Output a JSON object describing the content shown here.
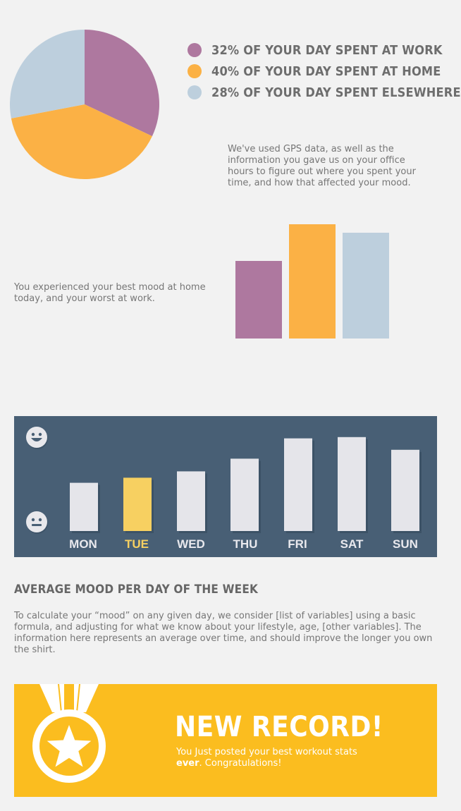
{
  "legend": [
    {
      "text": "32% of your day spent at work",
      "color": "#ae789f"
    },
    {
      "text": "40% of your day spent at home",
      "color": "#fbb145"
    },
    {
      "text": "28% of your day spent elsewhere",
      "color": "#bdcfdd"
    }
  ],
  "gps_text": "We've used GPS data, as well as the information you gave us on your office hours to figure out where you spent your time, and how that affected your mood.",
  "mood_text": "You experienced your best mood at home today, and your worst at work.",
  "week": {
    "highlight_color": "#f7d061",
    "bar_color": "#e5e5ea",
    "panel_color": "#485f75",
    "icons": [
      "happy-face-icon",
      "neutral-face-icon"
    ]
  },
  "average": {
    "title": "Average mood per day of the week",
    "text": "To calculate your “mood” on any given day, we consider [list of variables] using a basic formula, and adjusting for what we know about your lifestyle, age, [other variables]. The information here represents an average over time, and should improve the longer you own the shirt."
  },
  "record": {
    "title": "NEW RECORD!",
    "msg_before": "You Just posted your best workout stats ",
    "msg_bold": "ever",
    "msg_after": ". Congratulations!",
    "icon": "medal-star-icon",
    "color": "#fbbd1f"
  },
  "chart_data": [
    {
      "type": "pie",
      "labels": [
        "32% of your day spent at work",
        "40% of your day spent at home",
        "28% of your day spent elsewhere"
      ],
      "values": [
        32,
        40,
        28
      ],
      "colors": [
        "#ae789f",
        "#fbb145",
        "#bdcfdd"
      ]
    },
    {
      "type": "bar",
      "categories": [
        "work",
        "home",
        "elsewhere"
      ],
      "values": [
        110,
        162,
        150
      ],
      "colors": [
        "#ae789f",
        "#fbb145",
        "#bdcfdd"
      ],
      "ylim": [
        0,
        162
      ],
      "axes": "none"
    },
    {
      "type": "bar",
      "categories": [
        "MON",
        "TUE",
        "WED",
        "THU",
        "FRI",
        "SAT",
        "SUN"
      ],
      "values": [
        38,
        42,
        47,
        57,
        73,
        74,
        64
      ],
      "highlight": "TUE",
      "ylim": [
        0,
        100
      ],
      "ylabel_icons": [
        "happy-face-icon",
        "neutral-face-icon"
      ]
    }
  ]
}
